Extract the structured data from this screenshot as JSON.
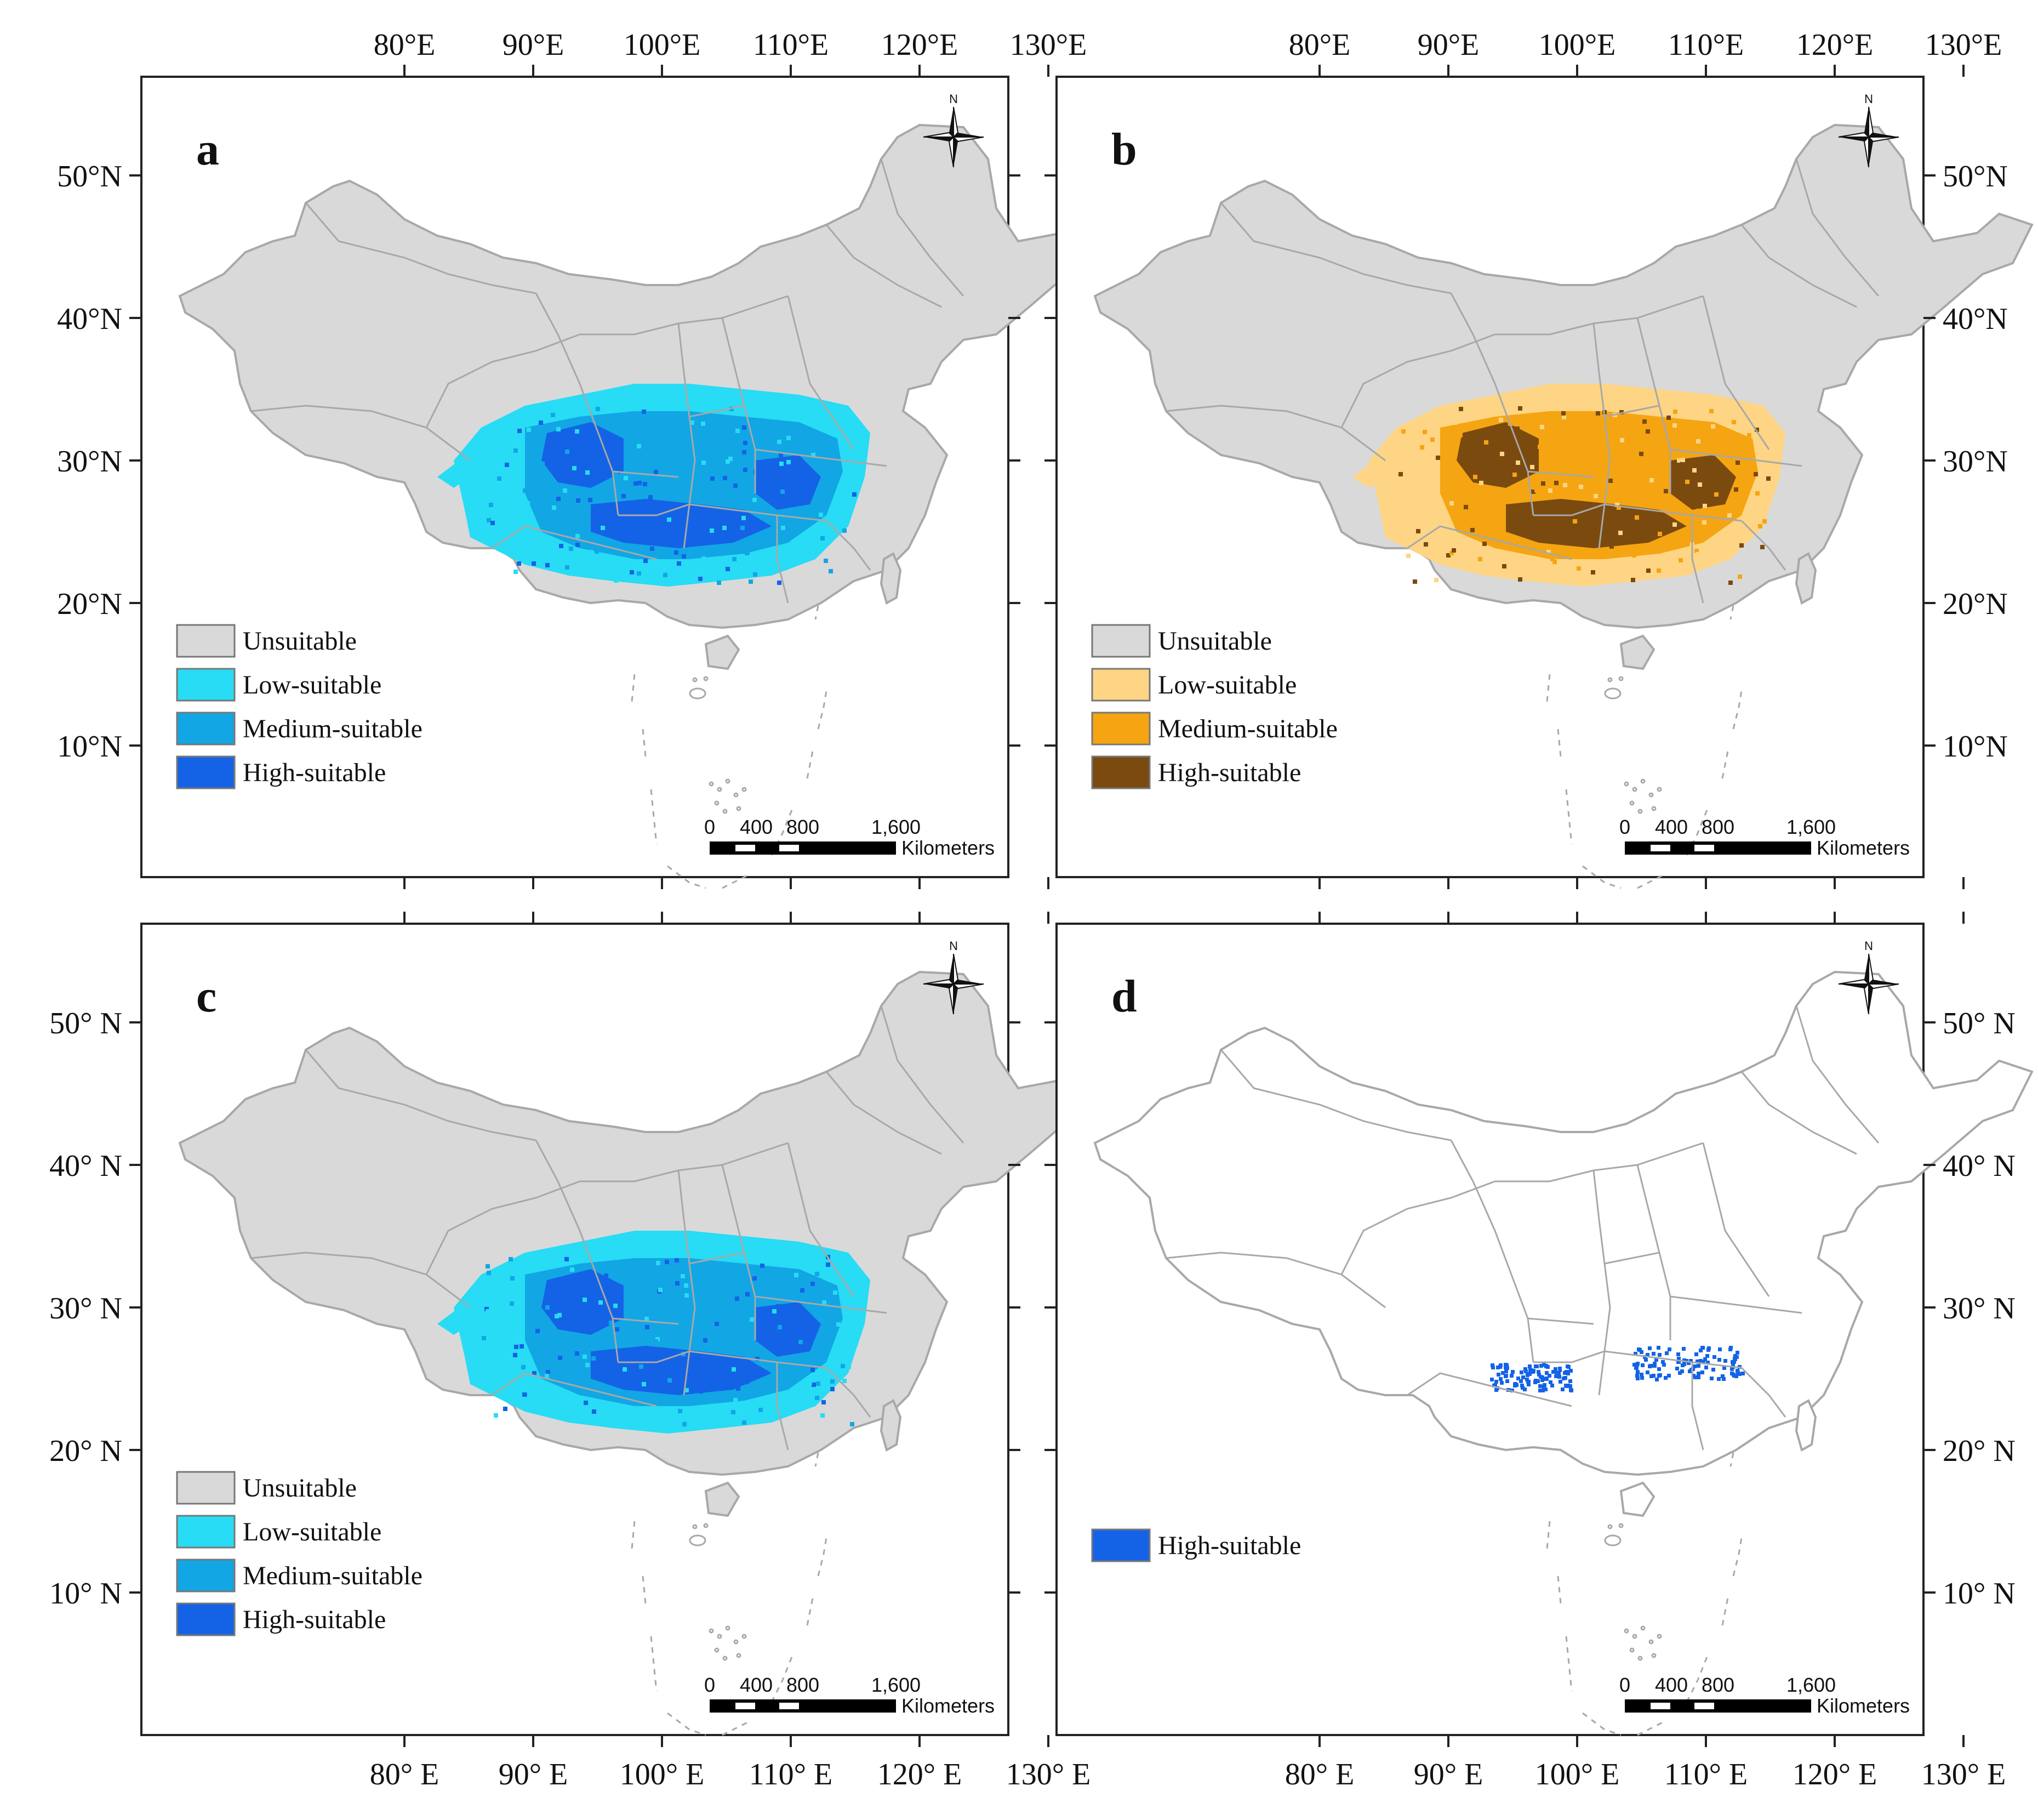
{
  "figure": {
    "panels": [
      {
        "letter": "a",
        "lon_labels_top": [
          "80°E",
          "90°E",
          "100°E",
          "110°E",
          "120°E",
          "130°E"
        ],
        "lon_labels_bottom": [],
        "lat_labels_left": [
          "50°N",
          "40°N",
          "30°N",
          "20°N",
          "10°N"
        ],
        "lat_labels_right": [],
        "legend": [
          {
            "label": "Unsuitable",
            "color": "#d9d9d9"
          },
          {
            "label": "Low-suitable",
            "color": "#27dcf4"
          },
          {
            "label": "Medium-suitable",
            "color": "#12a6e5"
          },
          {
            "label": "High-suitable",
            "color": "#1463e6"
          }
        ],
        "fill": {
          "land": "#d9d9d9",
          "suitable": [
            "#27dcf4",
            "#12a6e5",
            "#1463e6"
          ]
        },
        "scale_bar": {
          "ticks": [
            "0",
            "400",
            "800",
            "1,600"
          ],
          "unit": "Kilometers"
        },
        "north_label": "N"
      },
      {
        "letter": "b",
        "lon_labels_top": [
          "80°E",
          "90°E",
          "100°E",
          "110°E",
          "120°E",
          "130°E"
        ],
        "lon_labels_bottom": [],
        "lat_labels_left": [],
        "lat_labels_right": [
          "50°N",
          "40°N",
          "30°N",
          "20°N",
          "10°N"
        ],
        "legend": [
          {
            "label": "Unsuitable",
            "color": "#d9d9d9"
          },
          {
            "label": "Low-suitable",
            "color": "#fdd585"
          },
          {
            "label": "Medium-suitable",
            "color": "#f5a511"
          },
          {
            "label": "High-suitable",
            "color": "#7a4a0f"
          }
        ],
        "fill": {
          "land": "#d9d9d9",
          "suitable": [
            "#fdd585",
            "#f5a511",
            "#7a4a0f"
          ]
        },
        "scale_bar": {
          "ticks": [
            "0",
            "400",
            "800",
            "1,600"
          ],
          "unit": "Kilometers"
        },
        "north_label": "N"
      },
      {
        "letter": "c",
        "lon_labels_top": [],
        "lon_labels_bottom": [
          "80° E",
          "90° E",
          "100° E",
          "110° E",
          "120° E",
          "130° E"
        ],
        "lat_labels_left": [
          "50° N",
          "40° N",
          "30° N",
          "20° N",
          "10° N"
        ],
        "lat_labels_right": [],
        "legend": [
          {
            "label": "Unsuitable",
            "color": "#d9d9d9"
          },
          {
            "label": "Low-suitable",
            "color": "#27dcf4"
          },
          {
            "label": "Medium-suitable",
            "color": "#12a6e5"
          },
          {
            "label": "High-suitable",
            "color": "#1463e6"
          }
        ],
        "fill": {
          "land": "#d9d9d9",
          "suitable": [
            "#27dcf4",
            "#12a6e5",
            "#1463e6"
          ]
        },
        "scale_bar": {
          "ticks": [
            "0",
            "400",
            "800",
            "1,600"
          ],
          "unit": "Kilometers"
        },
        "north_label": "N"
      },
      {
        "letter": "d",
        "lon_labels_top": [],
        "lon_labels_bottom": [
          "80° E",
          "90° E",
          "100° E",
          "110° E",
          "120° E",
          "130° E"
        ],
        "lat_labels_left": [],
        "lat_labels_right": [
          "50° N",
          "40° N",
          "30° N",
          "20° N",
          "10° N"
        ],
        "legend": [
          {
            "label": "High-suitable",
            "color": "#1463e6"
          }
        ],
        "fill": {
          "land": "#ffffff",
          "suitable": [
            "#1463e6"
          ]
        },
        "scale_bar": {
          "ticks": [
            "0",
            "400",
            "800",
            "1,600"
          ],
          "unit": "Kilometers"
        },
        "north_label": "N"
      }
    ]
  }
}
